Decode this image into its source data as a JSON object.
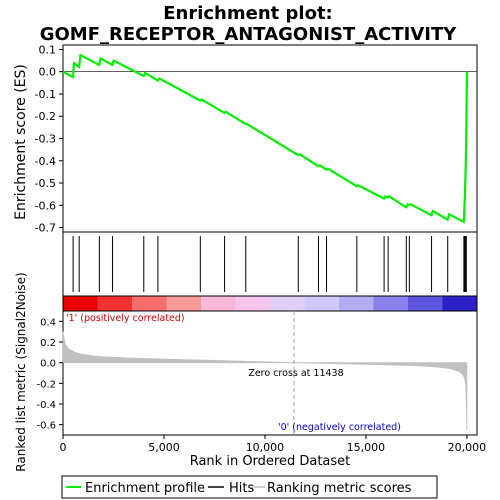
{
  "chart_data": [
    {
      "type": "line",
      "title": "Enrichment plot:",
      "subtitle": "GOMF_RECEPTOR_ANTAGONIST_ACTIVITY",
      "ylabel": "Enrichment score (ES)",
      "ylim": [
        -0.72,
        0.12
      ],
      "xlim": [
        0,
        20500
      ],
      "yticks": [
        0.1,
        0.0,
        -0.1,
        -0.2,
        -0.3,
        -0.4,
        -0.5,
        -0.6,
        -0.7
      ],
      "ytick_labels": [
        "0.1",
        "0.0",
        "-0.1",
        "-0.2",
        "-0.3",
        "-0.4",
        "-0.5",
        "-0.6",
        "-0.7"
      ],
      "series": [
        {
          "name": "Enrichment profile",
          "color": "#00ee00",
          "x": [
            0,
            500,
            540,
            800,
            860,
            1800,
            1860,
            2450,
            2510,
            4000,
            4060,
            4700,
            4760,
            6800,
            6860,
            8000,
            8060,
            9050,
            9110,
            11650,
            11710,
            12650,
            12710,
            13050,
            13110,
            14550,
            14610,
            15900,
            15960,
            16100,
            16160,
            17000,
            17060,
            17150,
            17210,
            18250,
            18310,
            19050,
            19110,
            19850,
            19890,
            19930,
            19970,
            20000
          ],
          "y": [
            0.0,
            -0.025,
            0.04,
            0.02,
            0.075,
            0.03,
            0.06,
            0.03,
            0.05,
            -0.02,
            -0.005,
            -0.04,
            -0.03,
            -0.13,
            -0.125,
            -0.185,
            -0.18,
            -0.235,
            -0.235,
            -0.375,
            -0.37,
            -0.425,
            -0.42,
            -0.44,
            -0.435,
            -0.515,
            -0.51,
            -0.57,
            -0.56,
            -0.565,
            -0.56,
            -0.61,
            -0.595,
            -0.6,
            -0.595,
            -0.645,
            -0.625,
            -0.665,
            -0.64,
            -0.675,
            -0.58,
            -0.47,
            -0.28,
            0.0
          ]
        }
      ],
      "hits_x": [
        500,
        800,
        1800,
        2450,
        4000,
        4700,
        6800,
        8000,
        9050,
        11650,
        12650,
        13050,
        14550,
        15900,
        16100,
        17000,
        17150,
        18250,
        19050,
        19850,
        19890,
        19930,
        19970
      ],
      "hits_color": "#000000",
      "grid": false
    },
    {
      "type": "area",
      "ylabel": "Ranked list metric (Signal2Noise)",
      "xlabel": "Rank in Ordered Dataset",
      "ylim": [
        -0.7,
        0.5
      ],
      "xlim": [
        0,
        20500
      ],
      "yticks": [
        0.4,
        0.2,
        0.0,
        -0.2,
        -0.4,
        -0.6
      ],
      "ytick_labels": [
        "0.4",
        "0.2",
        "0.0",
        "-0.2",
        "-0.4",
        "-0.6"
      ],
      "xticks": [
        0,
        5000,
        10000,
        15000,
        20000
      ],
      "xtick_labels": [
        "0",
        "5,000",
        "10,000",
        "15,000",
        "20,000"
      ],
      "series": [
        {
          "name": "Ranking metric scores",
          "color": "#c0c0c0",
          "x": [
            0,
            100,
            300,
            600,
            1000,
            1500,
            2000,
            3000,
            4000,
            5000,
            6000,
            7000,
            8000,
            9000,
            10000,
            11000,
            11438,
            12000,
            13000,
            14000,
            15000,
            16000,
            17000,
            17500,
            18000,
            18500,
            19000,
            19300,
            19600,
            19800,
            19900,
            19950,
            20000
          ],
          "y": [
            0.3,
            0.18,
            0.13,
            0.1,
            0.08,
            0.065,
            0.057,
            0.047,
            0.04,
            0.035,
            0.029,
            0.024,
            0.019,
            0.014,
            0.009,
            0.003,
            0.0,
            -0.003,
            -0.008,
            -0.012,
            -0.016,
            -0.021,
            -0.026,
            -0.03,
            -0.035,
            -0.042,
            -0.053,
            -0.065,
            -0.085,
            -0.115,
            -0.16,
            -0.25,
            -0.65
          ]
        }
      ],
      "annotations": [
        "'1' (positively correlated)",
        "Zero cross at 11438",
        "'0' (negatively correlated)"
      ],
      "zero_cross": 11438
    }
  ],
  "legend": {
    "items": [
      {
        "label": "Enrichment profile",
        "color": "#00ee00"
      },
      {
        "label": "Hits",
        "color": "#000000"
      },
      {
        "label": "Ranking metric scores",
        "color": "#c0c0c0"
      }
    ]
  },
  "colorbar": {
    "colors": [
      "#ea0000",
      "#f23232",
      "#f66d6d",
      "#f99a9a",
      "#f8b8d8",
      "#f6c6ee",
      "#e0d0f8",
      "#cfc8f8",
      "#b3aef4",
      "#8a82ea",
      "#5e55de",
      "#2e20c8"
    ]
  }
}
